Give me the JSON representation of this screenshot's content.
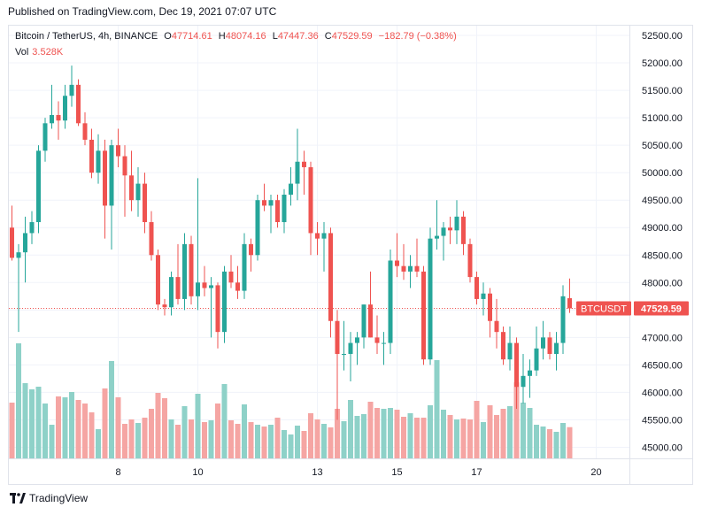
{
  "header": {
    "published": "Published on TradingView.com, Dec 19, 2021 07:07 UTC"
  },
  "legend": {
    "symbol": "Bitcoin / TetherUS, 4h, BINANCE",
    "open_label": "O",
    "open": "47714.61",
    "high_label": "H",
    "high": "48074.16",
    "low_label": "L",
    "low": "47447.36",
    "close_label": "C",
    "close": "47529.59",
    "change": "−182.79 (−0.38%)",
    "vol_label": "Vol",
    "vol": "3.528K"
  },
  "footer": {
    "brand": "TradingView"
  },
  "colors": {
    "up": "#26a69a",
    "down": "#ef5350",
    "vol_up": "#8ed1c8",
    "vol_down": "#f5a5a3",
    "grid": "#f0f3fa",
    "price_line": "#ef5350"
  },
  "chart_data": {
    "type": "candlestick",
    "symbol": "BTCUSDT",
    "last_price": 47529.59,
    "last_price_label": "47529.59",
    "y_ticks": [
      45000,
      45500,
      46000,
      46500,
      47000,
      47500,
      48000,
      48500,
      49000,
      49500,
      50000,
      50500,
      51000,
      51500,
      52000,
      52500
    ],
    "y_tick_labels": [
      "45000.00",
      "45500.00",
      "46000.00",
      "46500.00",
      "47000.00",
      "47500.00",
      "48000.00",
      "48500.00",
      "49000.00",
      "49500.00",
      "50000.00",
      "50500.00",
      "51000.00",
      "51500.00",
      "52000.00",
      "52500.00"
    ],
    "ylim": [
      44800,
      52650
    ],
    "x_ticks": [
      {
        "label": "8",
        "index": 16
      },
      {
        "label": "10",
        "index": 28
      },
      {
        "label": "13",
        "index": 46
      },
      {
        "label": "15",
        "index": 58
      },
      {
        "label": "17",
        "index": 70
      },
      {
        "label": "20",
        "index": 88
      }
    ],
    "candles": [
      {
        "o": 49000,
        "h": 49400,
        "l": 48400,
        "c": 48450
      },
      {
        "o": 48450,
        "h": 48700,
        "l": 47100,
        "c": 48550
      },
      {
        "o": 48550,
        "h": 49200,
        "l": 48000,
        "c": 48900
      },
      {
        "o": 48900,
        "h": 49300,
        "l": 48700,
        "c": 49100
      },
      {
        "o": 49100,
        "h": 50500,
        "l": 48900,
        "c": 50400
      },
      {
        "o": 50400,
        "h": 51000,
        "l": 50200,
        "c": 50900
      },
      {
        "o": 50900,
        "h": 51600,
        "l": 50800,
        "c": 51050
      },
      {
        "o": 51050,
        "h": 51300,
        "l": 50600,
        "c": 50950
      },
      {
        "o": 50950,
        "h": 51600,
        "l": 50800,
        "c": 51400
      },
      {
        "o": 51400,
        "h": 51950,
        "l": 51200,
        "c": 51600
      },
      {
        "o": 51600,
        "h": 51700,
        "l": 50850,
        "c": 50900
      },
      {
        "o": 50900,
        "h": 51100,
        "l": 50500,
        "c": 50600
      },
      {
        "o": 50600,
        "h": 50800,
        "l": 49900,
        "c": 50000
      },
      {
        "o": 50000,
        "h": 50700,
        "l": 49800,
        "c": 50400
      },
      {
        "o": 50400,
        "h": 50600,
        "l": 48800,
        "c": 49400
      },
      {
        "o": 49400,
        "h": 50600,
        "l": 48600,
        "c": 50500
      },
      {
        "o": 50500,
        "h": 50800,
        "l": 50100,
        "c": 50300
      },
      {
        "o": 50300,
        "h": 50500,
        "l": 49200,
        "c": 49950
      },
      {
        "o": 49950,
        "h": 50400,
        "l": 49300,
        "c": 49500
      },
      {
        "o": 49500,
        "h": 50100,
        "l": 49200,
        "c": 49800
      },
      {
        "o": 49800,
        "h": 50000,
        "l": 48900,
        "c": 49100
      },
      {
        "o": 49100,
        "h": 49300,
        "l": 48400,
        "c": 48500
      },
      {
        "o": 48500,
        "h": 48600,
        "l": 47500,
        "c": 47600
      },
      {
        "o": 47600,
        "h": 47700,
        "l": 47400,
        "c": 47550
      },
      {
        "o": 47550,
        "h": 48200,
        "l": 47400,
        "c": 48100
      },
      {
        "o": 48100,
        "h": 48700,
        "l": 47600,
        "c": 47700
      },
      {
        "o": 47700,
        "h": 48900,
        "l": 47500,
        "c": 48700
      },
      {
        "o": 48700,
        "h": 48850,
        "l": 47600,
        "c": 47750
      },
      {
        "o": 47750,
        "h": 49900,
        "l": 47500,
        "c": 48000
      },
      {
        "o": 48000,
        "h": 48300,
        "l": 47750,
        "c": 47900
      },
      {
        "o": 47900,
        "h": 48100,
        "l": 47000,
        "c": 47950
      },
      {
        "o": 47950,
        "h": 48000,
        "l": 46800,
        "c": 47100
      },
      {
        "o": 47100,
        "h": 48300,
        "l": 46900,
        "c": 48200
      },
      {
        "o": 48200,
        "h": 48500,
        "l": 47900,
        "c": 48000
      },
      {
        "o": 48000,
        "h": 48300,
        "l": 47700,
        "c": 47850
      },
      {
        "o": 47850,
        "h": 48900,
        "l": 47700,
        "c": 48700
      },
      {
        "o": 48700,
        "h": 48800,
        "l": 48200,
        "c": 48500
      },
      {
        "o": 48500,
        "h": 49600,
        "l": 48400,
        "c": 49500
      },
      {
        "o": 49500,
        "h": 49800,
        "l": 49300,
        "c": 49400
      },
      {
        "o": 49400,
        "h": 49600,
        "l": 48900,
        "c": 49500
      },
      {
        "o": 49500,
        "h": 49600,
        "l": 49000,
        "c": 49100
      },
      {
        "o": 49100,
        "h": 49700,
        "l": 48900,
        "c": 49600
      },
      {
        "o": 49600,
        "h": 50100,
        "l": 49400,
        "c": 49800
      },
      {
        "o": 49800,
        "h": 50800,
        "l": 49500,
        "c": 50200
      },
      {
        "o": 50200,
        "h": 50400,
        "l": 49600,
        "c": 50100
      },
      {
        "o": 50100,
        "h": 50200,
        "l": 48500,
        "c": 48900
      },
      {
        "o": 48900,
        "h": 49100,
        "l": 48500,
        "c": 48800
      },
      {
        "o": 48800,
        "h": 49100,
        "l": 48200,
        "c": 48900
      },
      {
        "o": 48900,
        "h": 49000,
        "l": 47000,
        "c": 47300
      },
      {
        "o": 47300,
        "h": 47500,
        "l": 45500,
        "c": 46700
      },
      {
        "o": 46700,
        "h": 47300,
        "l": 46400,
        "c": 46700
      },
      {
        "o": 46700,
        "h": 47100,
        "l": 46200,
        "c": 46900
      },
      {
        "o": 46900,
        "h": 47100,
        "l": 46500,
        "c": 47000
      },
      {
        "o": 47000,
        "h": 47600,
        "l": 46800,
        "c": 47600
      },
      {
        "o": 47600,
        "h": 48200,
        "l": 47000,
        "c": 47000
      },
      {
        "o": 47000,
        "h": 47400,
        "l": 46700,
        "c": 46900
      },
      {
        "o": 46900,
        "h": 47100,
        "l": 46500,
        "c": 46900
      },
      {
        "o": 46900,
        "h": 48600,
        "l": 46700,
        "c": 48400
      },
      {
        "o": 48400,
        "h": 48900,
        "l": 48100,
        "c": 48300
      },
      {
        "o": 48300,
        "h": 48700,
        "l": 48050,
        "c": 48200
      },
      {
        "o": 48200,
        "h": 48500,
        "l": 47900,
        "c": 48300
      },
      {
        "o": 48300,
        "h": 48800,
        "l": 48100,
        "c": 48200
      },
      {
        "o": 48200,
        "h": 48300,
        "l": 46500,
        "c": 46600
      },
      {
        "o": 46600,
        "h": 49000,
        "l": 46500,
        "c": 48800
      },
      {
        "o": 48800,
        "h": 49500,
        "l": 48600,
        "c": 48850
      },
      {
        "o": 48850,
        "h": 49100,
        "l": 48400,
        "c": 49000
      },
      {
        "o": 49000,
        "h": 49200,
        "l": 48700,
        "c": 48950
      },
      {
        "o": 48950,
        "h": 49500,
        "l": 48700,
        "c": 49200
      },
      {
        "o": 49200,
        "h": 49300,
        "l": 48500,
        "c": 48700
      },
      {
        "o": 48700,
        "h": 48800,
        "l": 48000,
        "c": 48100
      },
      {
        "o": 48100,
        "h": 48200,
        "l": 47600,
        "c": 47700
      },
      {
        "o": 47700,
        "h": 48000,
        "l": 47400,
        "c": 47800
      },
      {
        "o": 47800,
        "h": 47900,
        "l": 47000,
        "c": 47300
      },
      {
        "o": 47300,
        "h": 47700,
        "l": 46800,
        "c": 47100
      },
      {
        "o": 47100,
        "h": 47200,
        "l": 46500,
        "c": 46600
      },
      {
        "o": 46600,
        "h": 47200,
        "l": 46400,
        "c": 46900
      },
      {
        "o": 46900,
        "h": 47000,
        "l": 45700,
        "c": 46100
      },
      {
        "o": 46100,
        "h": 46700,
        "l": 45800,
        "c": 46300
      },
      {
        "o": 46300,
        "h": 46600,
        "l": 45900,
        "c": 46400
      },
      {
        "o": 46400,
        "h": 47200,
        "l": 46300,
        "c": 46800
      },
      {
        "o": 46800,
        "h": 47300,
        "l": 46600,
        "c": 47000
      },
      {
        "o": 47000,
        "h": 47100,
        "l": 46600,
        "c": 46700
      },
      {
        "o": 46700,
        "h": 47100,
        "l": 46400,
        "c": 46900
      },
      {
        "o": 46900,
        "h": 47950,
        "l": 46700,
        "c": 47750
      },
      {
        "o": 47714.61,
        "h": 48074.16,
        "l": 47447.36,
        "c": 47529.59
      }
    ],
    "volume_k": [
      6.3,
      13.0,
      8.5,
      7.8,
      8.1,
      6.2,
      3.8,
      7.0,
      6.9,
      7.5,
      6.6,
      6.2,
      5.2,
      3.3,
      7.9,
      11.0,
      6.9,
      3.9,
      4.4,
      4.0,
      4.6,
      5.6,
      7.4,
      6.8,
      4.4,
      3.8,
      5.9,
      4.4,
      7.3,
      4.1,
      4.3,
      6.2,
      8.4,
      4.3,
      3.9,
      6.1,
      4.1,
      3.8,
      3.6,
      3.8,
      4.6,
      3.2,
      2.7,
      3.7,
      3.1,
      5.1,
      4.4,
      3.9,
      3.5,
      5.6,
      4.2,
      6.6,
      4.8,
      5.0,
      6.4,
      5.7,
      5.6,
      5.7,
      5.5,
      4.7,
      5.1,
      4.6,
      4.6,
      6.0,
      11.1,
      5.5,
      4.9,
      4.4,
      4.5,
      4.4,
      6.5,
      4.1,
      6.0,
      4.9,
      5.6,
      5.9,
      8.6,
      6.3,
      5.7,
      3.8,
      3.6,
      3.3,
      3.0,
      4.0,
      3.528
    ],
    "volume_max_k": 14.0
  }
}
